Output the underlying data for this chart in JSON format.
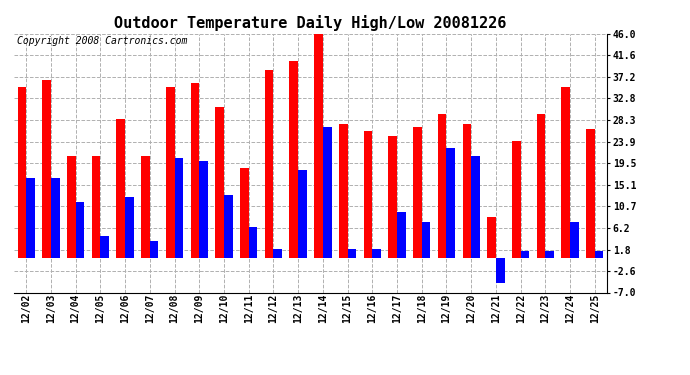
{
  "title": "Outdoor Temperature Daily High/Low 20081226",
  "copyright": "Copyright 2008 Cartronics.com",
  "dates": [
    "12/02",
    "12/03",
    "12/04",
    "12/05",
    "12/06",
    "12/07",
    "12/08",
    "12/09",
    "12/10",
    "12/11",
    "12/12",
    "12/13",
    "12/14",
    "12/15",
    "12/16",
    "12/17",
    "12/18",
    "12/19",
    "12/20",
    "12/21",
    "12/22",
    "12/23",
    "12/24",
    "12/25"
  ],
  "highs": [
    35.0,
    36.5,
    21.0,
    21.0,
    28.5,
    21.0,
    35.0,
    36.0,
    31.0,
    18.5,
    38.5,
    40.5,
    46.5,
    27.5,
    26.0,
    25.0,
    27.0,
    29.5,
    27.5,
    8.5,
    24.0,
    29.5,
    35.0,
    26.5
  ],
  "lows": [
    16.5,
    16.5,
    11.5,
    4.5,
    12.5,
    3.5,
    20.5,
    20.0,
    13.0,
    6.5,
    2.0,
    18.0,
    27.0,
    2.0,
    2.0,
    9.5,
    7.5,
    22.5,
    21.0,
    -5.0,
    1.5,
    1.5,
    7.5,
    1.5
  ],
  "high_color": "#ff0000",
  "low_color": "#0000ff",
  "background_color": "#ffffff",
  "plot_bg_color": "#ffffff",
  "grid_color": "#b0b0b0",
  "yticks": [
    -7.0,
    -2.6,
    1.8,
    6.2,
    10.7,
    15.1,
    19.5,
    23.9,
    28.3,
    32.8,
    37.2,
    41.6,
    46.0
  ],
  "ylim": [
    -7.0,
    46.0
  ],
  "title_fontsize": 11,
  "copyright_fontsize": 7,
  "tick_fontsize": 7,
  "bar_width": 0.35
}
